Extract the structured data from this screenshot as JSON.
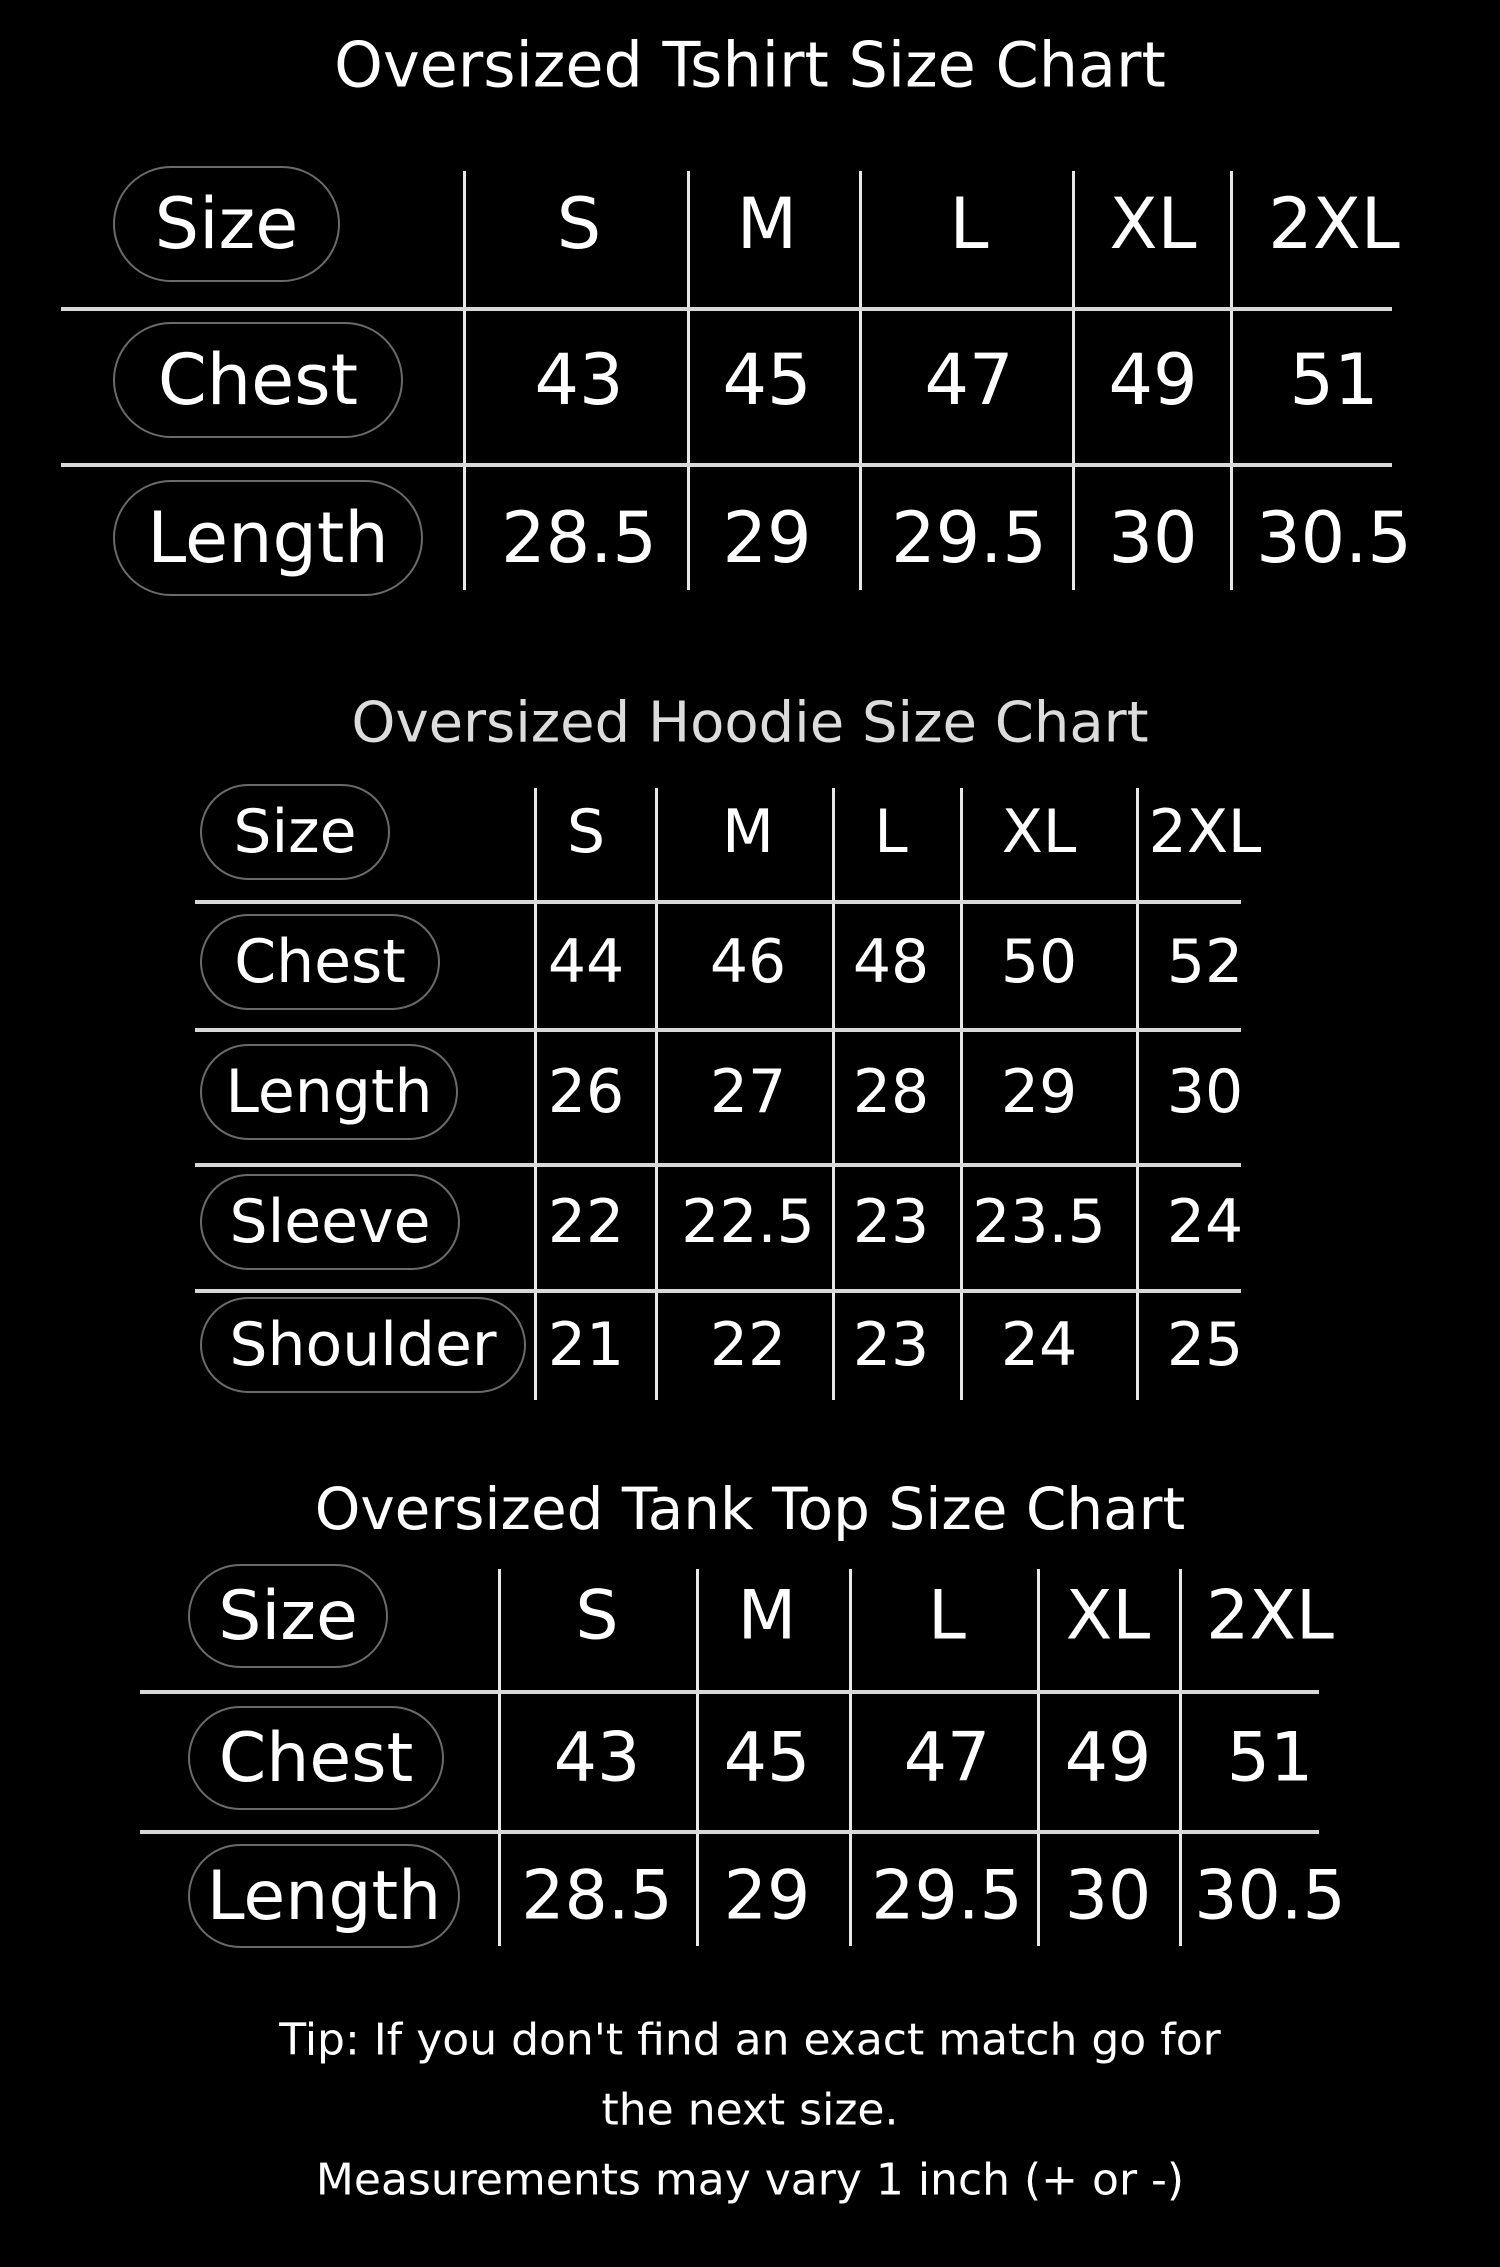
{
  "tables": [
    {
      "title": "Oversized Tshirt Size Chart",
      "header_label": "Size",
      "sizes": [
        "S",
        "M",
        "L",
        "XL",
        "2XL"
      ],
      "rows": [
        {
          "label": "Chest",
          "values": [
            "43",
            "45",
            "47",
            "49",
            "51"
          ]
        },
        {
          "label": "Length",
          "values": [
            "28.5",
            "29",
            "29.5",
            "30",
            "30.5"
          ]
        }
      ]
    },
    {
      "title": "Oversized Hoodie Size Chart",
      "header_label": "Size",
      "sizes": [
        "S",
        "M",
        "L",
        "XL",
        "2XL"
      ],
      "rows": [
        {
          "label": "Chest",
          "values": [
            "44",
            "46",
            "48",
            "50",
            "52"
          ]
        },
        {
          "label": "Length",
          "values": [
            "26",
            "27",
            "28",
            "29",
            "30"
          ]
        },
        {
          "label": "Sleeve",
          "values": [
            "22",
            "22.5",
            "23",
            "23.5",
            "24"
          ]
        },
        {
          "label": "Shoulder",
          "values": [
            "21",
            "22",
            "23",
            "24",
            "25"
          ]
        }
      ]
    },
    {
      "title": "Oversized Tank Top Size Chart",
      "header_label": "Size",
      "sizes": [
        "S",
        "M",
        "L",
        "XL",
        "2XL"
      ],
      "rows": [
        {
          "label": "Chest",
          "values": [
            "43",
            "45",
            "47",
            "49",
            "51"
          ]
        },
        {
          "label": "Length",
          "values": [
            "28.5",
            "29",
            "29.5",
            "30",
            "30.5"
          ]
        }
      ]
    }
  ],
  "footer": {
    "line1": "Tip: If you don't find an exact match go for",
    "line2": "the next size.",
    "line3": "Measurements may vary 1 inch (+ or -)"
  }
}
